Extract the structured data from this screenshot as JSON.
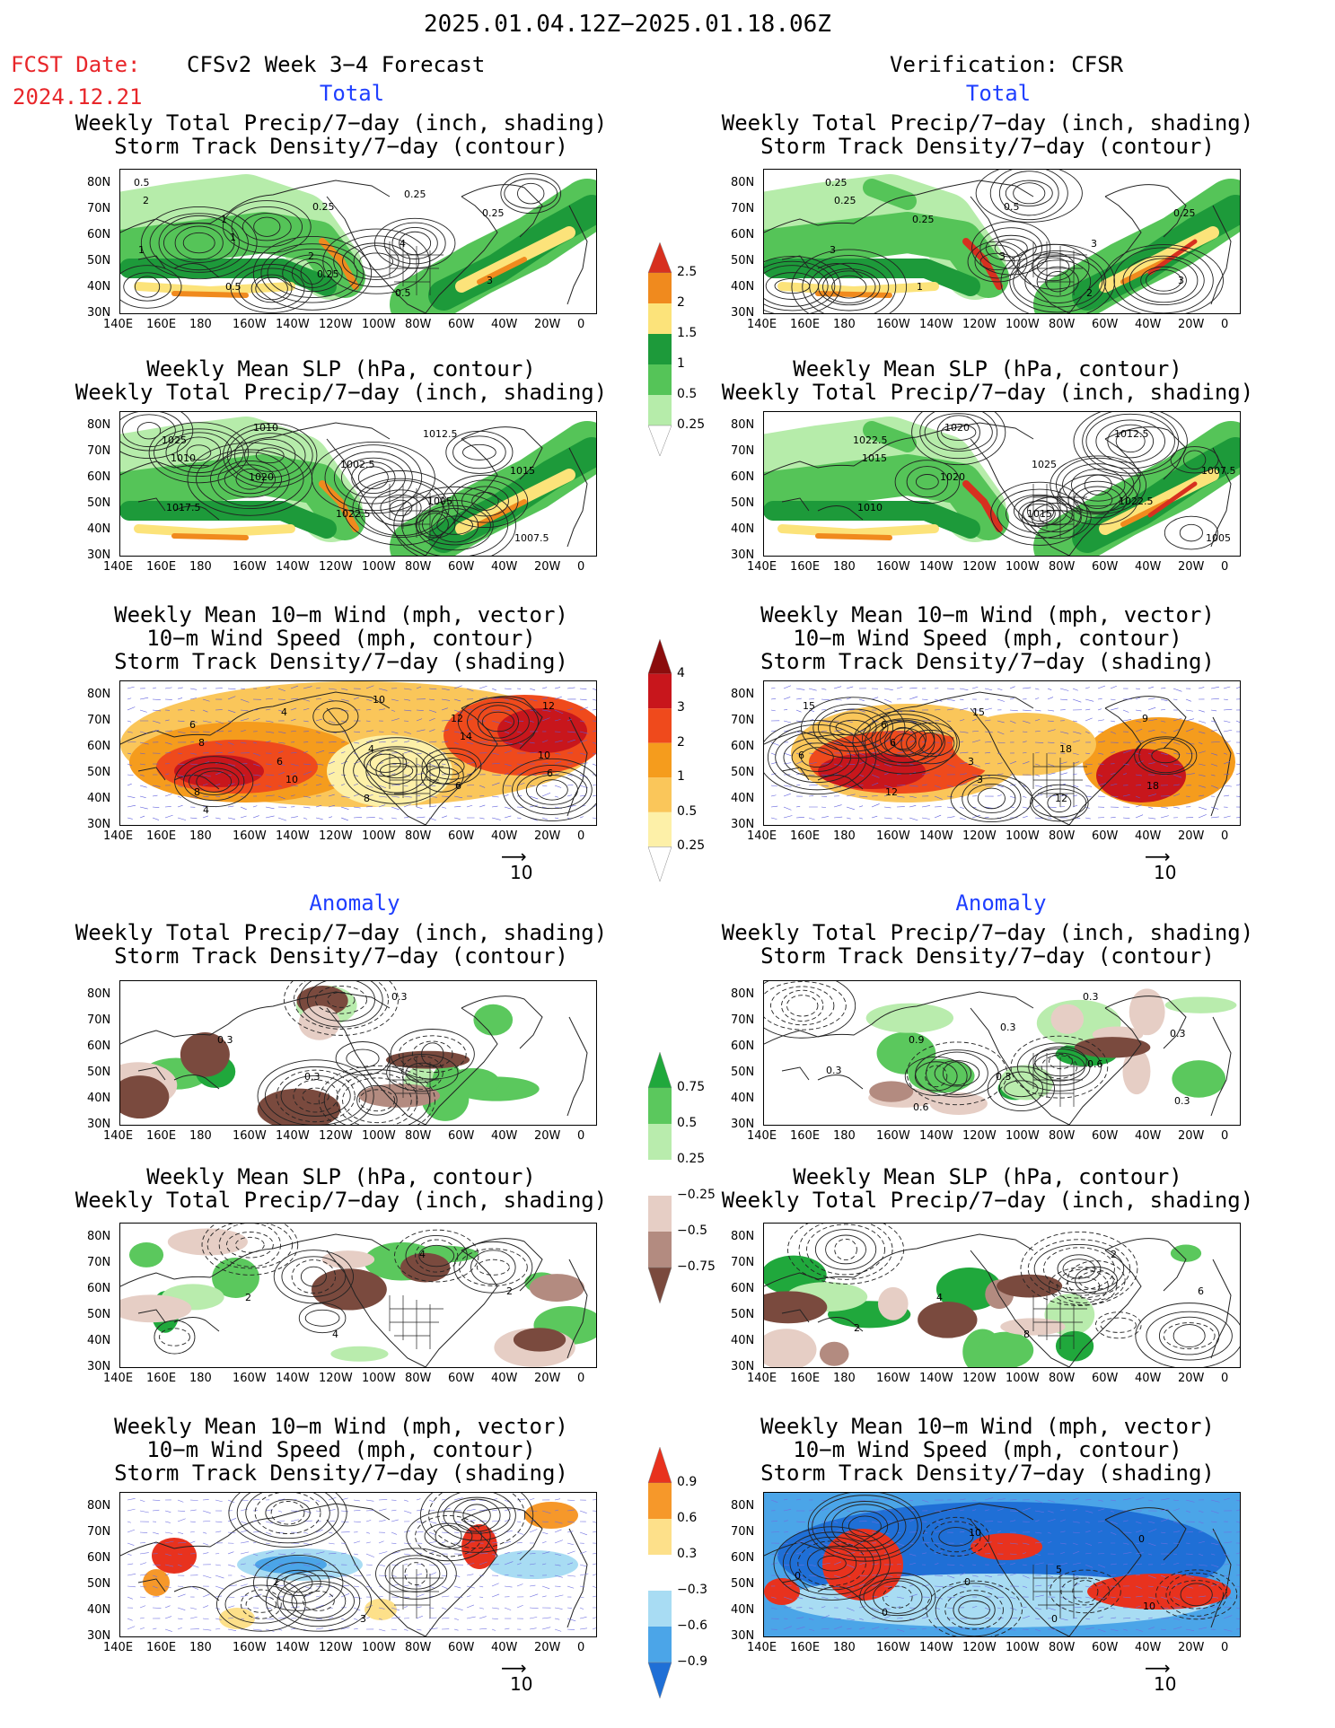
{
  "header": {
    "date_range": "2025.01.04.12Z−2025.01.18.06Z",
    "fcst_label": "FCST Date:",
    "fcst_date": "2024.12.21",
    "left_title": "CFSv2 Week 3−4 Forecast",
    "right_title": "Verification: CFSR"
  },
  "sections": {
    "total": "Total",
    "anomaly": "Anomaly"
  },
  "panel_titles": {
    "precip_storm": [
      "Weekly Total Precip/7−day (inch, shading)",
      "Storm Track Density/7−day (contour)"
    ],
    "slp_precip": [
      "Weekly Mean SLP (hPa, contour)",
      "Weekly Total Precip/7−day (inch, shading)"
    ],
    "wind_storm": [
      "Weekly Mean 10−m Wind (mph, vector)",
      "10−m Wind Speed (mph, contour)",
      "Storm Track Density/7−day (shading)"
    ]
  },
  "axes": {
    "lat_labels": [
      "80N",
      "70N",
      "60N",
      "50N",
      "40N",
      "30N"
    ],
    "lon_labels": [
      "140E",
      "160E",
      "180",
      "160W",
      "140W",
      "120W",
      "100W",
      "80W",
      "60W",
      "40W",
      "20W",
      "0"
    ]
  },
  "vector_ref": "10",
  "colorbars": {
    "precip_total": {
      "labels": [
        "2.5",
        "2",
        "1.5",
        "1",
        "0.5",
        "0.25"
      ],
      "colors": [
        "#d7301f",
        "#f08a1e",
        "#fce37a",
        "#1d9a3a",
        "#55c458",
        "#b6ecaa",
        "#ffffff"
      ]
    },
    "storm_total": {
      "labels": [
        "4",
        "3",
        "2",
        "1",
        "0.5",
        "0.25"
      ],
      "colors": [
        "#8b0d0d",
        "#c8161c",
        "#ef4a1c",
        "#f59c1d",
        "#fac65a",
        "#fdf0a8",
        "#ffffff"
      ]
    },
    "precip_anom": {
      "labels": [
        "0.75",
        "0.5",
        "0.25",
        "−0.25",
        "−0.5",
        "−0.75"
      ],
      "colors": [
        "#20a83c",
        "#5bc85d",
        "#b9ecad",
        "#ffffff",
        "#e6cec5",
        "#b38b80",
        "#7a4a3e"
      ]
    },
    "storm_anom": {
      "labels": [
        "0.9",
        "0.6",
        "0.3",
        "−0.3",
        "−0.6",
        "−0.9"
      ],
      "colors": [
        "#e8321e",
        "#f6982a",
        "#fde08a",
        "#ffffff",
        "#a8dcf3",
        "#4ba5e8",
        "#1f6fd6"
      ]
    }
  },
  "panels": [
    {
      "id": "fc-total-precip",
      "labels": [
        "0.5",
        "1",
        "2",
        "0.5",
        "0.25",
        "1",
        "0.5",
        "0.25",
        "4",
        "3",
        "2",
        "1",
        "0.25",
        "0.25"
      ]
    },
    {
      "id": "vf-total-precip",
      "labels": [
        "0.25",
        "0.25",
        "3",
        "2",
        "0.25",
        "3",
        "1",
        "0.5",
        "3",
        "3",
        "0.25"
      ]
    },
    {
      "id": "fc-total-slp",
      "labels": [
        "1025",
        "1020",
        "1022.5",
        "1012.5",
        "1015",
        "1017.5",
        "1010",
        "1002.5",
        "1005",
        "1007.5",
        "1010"
      ]
    },
    {
      "id": "vf-total-slp",
      "labels": [
        "1022.5",
        "1020",
        "1015",
        "1012.5",
        "1007.5",
        "1010",
        "1020",
        "1025",
        "1022.5",
        "1005",
        "1015"
      ]
    },
    {
      "id": "fc-total-wind",
      "labels": [
        "6",
        "6",
        "8",
        "12",
        "10",
        "8",
        "4",
        "4",
        "6",
        "12",
        "8",
        "10",
        "10",
        "14",
        "6",
        "4"
      ]
    },
    {
      "id": "vf-total-wind",
      "labels": [
        "6",
        "3",
        "12",
        "9",
        "6",
        "12",
        "15",
        "18",
        "18",
        "15",
        "6",
        "3"
      ]
    },
    {
      "id": "fc-anom-precip",
      "labels": [
        "0.3",
        "0.3",
        "0.3"
      ]
    },
    {
      "id": "vf-anom-precip",
      "labels": [
        "0.9",
        "0.3",
        "0.3",
        "0.3",
        "0.3",
        "0.6",
        "0.3",
        "0.6",
        "0.3"
      ]
    },
    {
      "id": "fc-anom-slp",
      "labels": [
        "2",
        "4",
        "4",
        "2"
      ]
    },
    {
      "id": "vf-anom-slp",
      "labels": [
        "4",
        "8",
        "2",
        "6",
        "2"
      ]
    },
    {
      "id": "fc-anom-wind",
      "labels": [
        "2",
        "3"
      ]
    },
    {
      "id": "vf-anom-wind",
      "labels": [
        "0",
        "0",
        "0",
        "0",
        "0",
        "10",
        "5",
        "10"
      ]
    }
  ]
}
